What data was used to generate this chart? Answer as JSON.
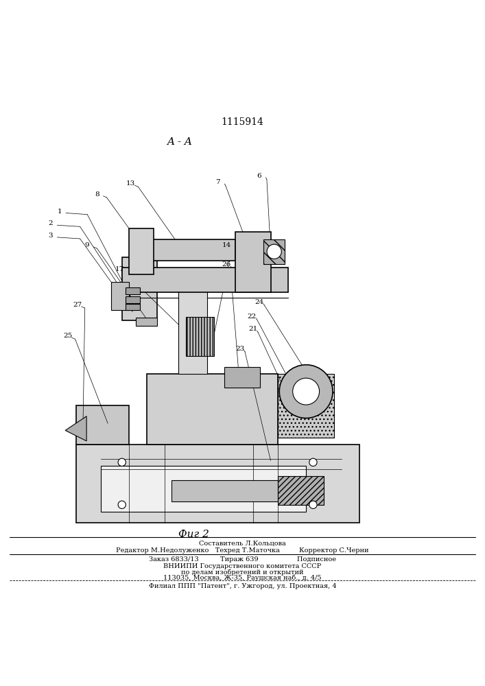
{
  "patent_number": "1115914",
  "section_label": "A - A",
  "fig_label": "Фиг 2",
  "background_color": "#ffffff",
  "drawing_color": "#000000"
}
